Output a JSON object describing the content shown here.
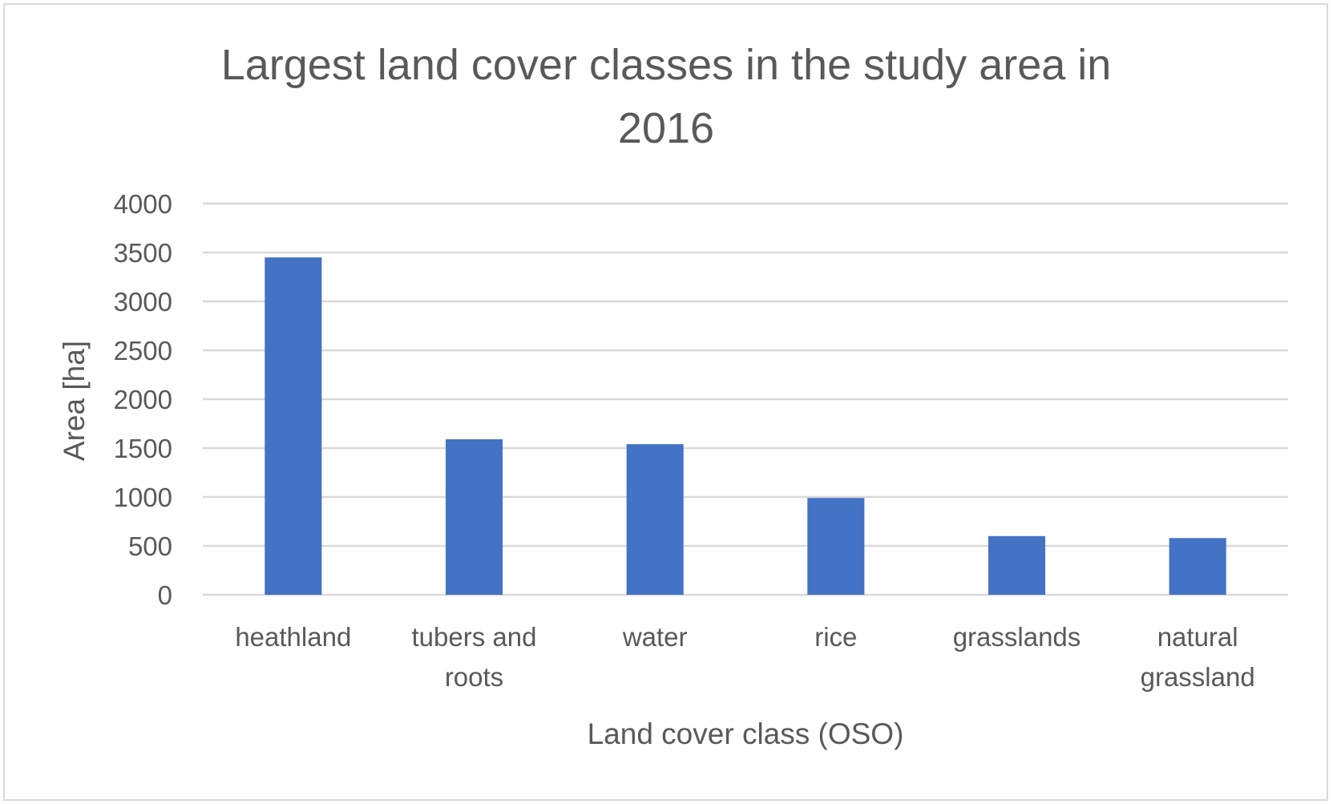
{
  "chart_data": {
    "type": "bar",
    "title_lines": [
      "Largest land cover classes in the study area in",
      "2016"
    ],
    "xlabel": "Land cover class (OSO)",
    "ylabel": "Area [ha]",
    "categories": [
      [
        "heathland"
      ],
      [
        "tubers and",
        "roots"
      ],
      [
        "water"
      ],
      [
        "rice"
      ],
      [
        "grasslands"
      ],
      [
        "natural",
        "grassland"
      ]
    ],
    "values": [
      3450,
      1590,
      1540,
      990,
      600,
      580
    ],
    "ylim": [
      0,
      4000
    ],
    "yticks": [
      0,
      500,
      1000,
      1500,
      2000,
      2500,
      3000,
      3500,
      4000
    ],
    "grid": true,
    "legend": "none",
    "bar_color": "#4472C4",
    "grid_color": "#d9d9d9",
    "text_color": "#595959"
  }
}
